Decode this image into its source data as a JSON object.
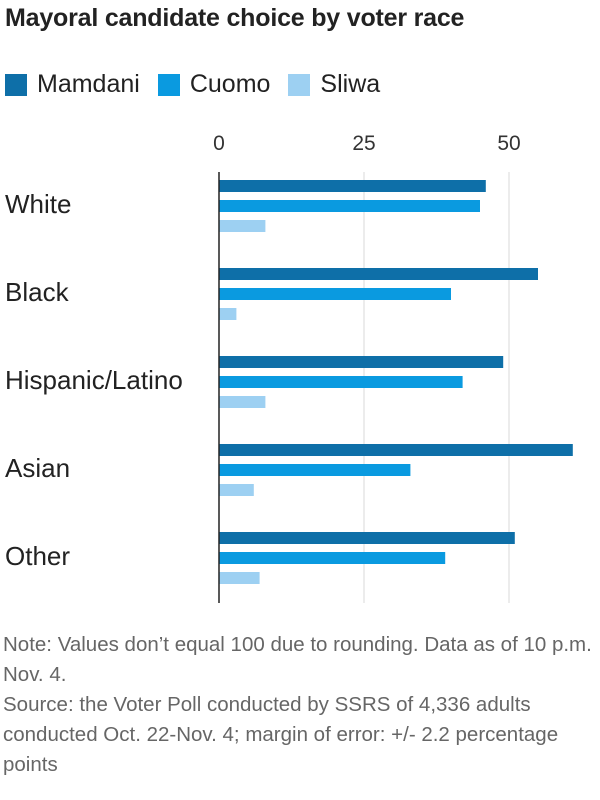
{
  "title": "Mayoral candidate choice by voter race",
  "legend": [
    {
      "name": "Mamdani",
      "color": "#0e6fa8"
    },
    {
      "name": "Cuomo",
      "color": "#0a9ae0"
    },
    {
      "name": "Sliwa",
      "color": "#9dd0f2"
    }
  ],
  "notes": {
    "note": "Note: Values don’t equal 100 due to rounding. Data as of 10 p.m. Nov. 4.",
    "source": "Source: the Voter Poll conducted by SSRS of 4,336 adults conducted Oct. 22-Nov. 4; margin of error: +/- 2.2 percentage points"
  },
  "chart_data": {
    "type": "bar",
    "orientation": "horizontal",
    "title": "Mayoral candidate choice by voter race",
    "categories": [
      "White",
      "Black",
      "Hispanic/Latino",
      "Asian",
      "Other"
    ],
    "series": [
      {
        "name": "Mamdani",
        "color": "#0e6fa8",
        "values": [
          46,
          55,
          49,
          61,
          51
        ]
      },
      {
        "name": "Cuomo",
        "color": "#0a9ae0",
        "values": [
          45,
          40,
          42,
          33,
          39
        ]
      },
      {
        "name": "Sliwa",
        "color": "#9dd0f2",
        "values": [
          8,
          3,
          8,
          6,
          7
        ]
      }
    ],
    "xticks": [
      0,
      25,
      50
    ],
    "xlim": [
      0,
      62
    ],
    "xlabel": "",
    "ylabel": "",
    "grid": true,
    "legend_position": "top-left"
  }
}
